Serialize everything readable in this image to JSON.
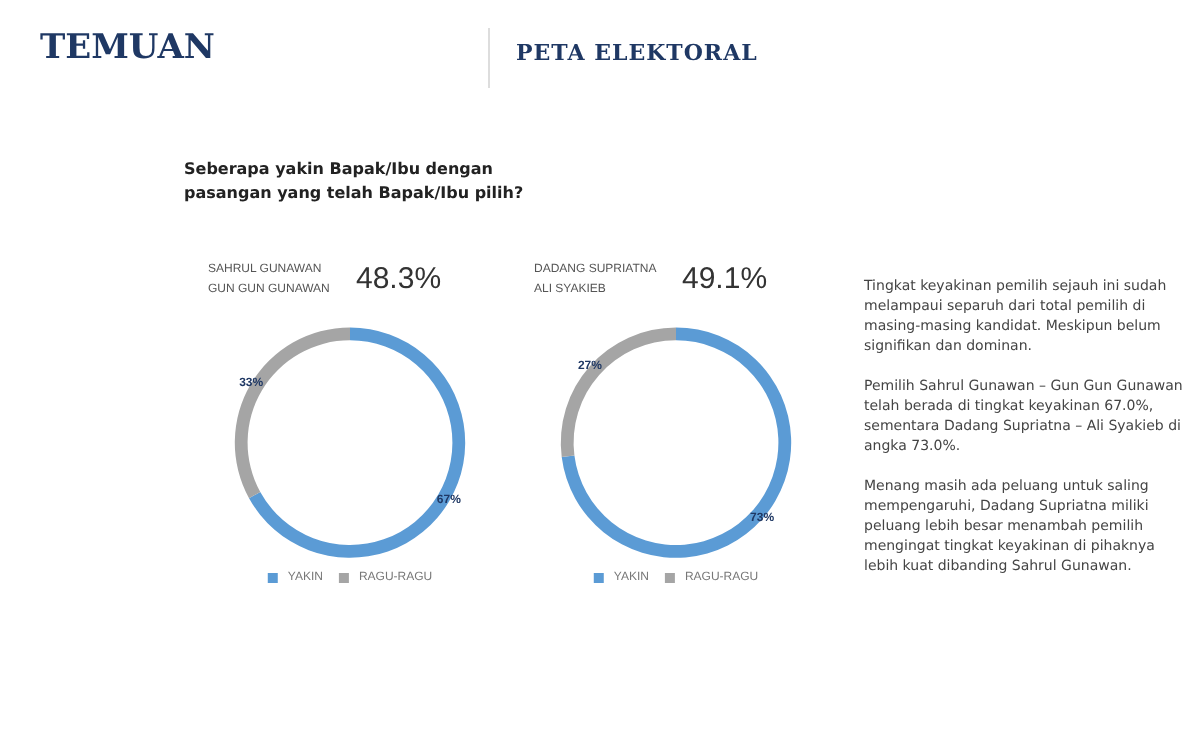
{
  "chart_data": [
    {
      "type": "donut",
      "title": "SAHRUL GUNAWAN\nGUN GUN GUNAWAN",
      "subtitle": "48.3%",
      "annotations": [
        "TEMUAN",
        "PETA ELEKTORAL",
        "Seberapa yakin Bapak/Ibu dengan\npasangan yang telah Bapak/Ibu pilih?"
      ],
      "categories": [
        "YAKIN",
        "RAGU-RAGU"
      ],
      "values": [
        67,
        33
      ],
      "colors": [
        "#5b9bd5",
        "#a5a5a5"
      ],
      "value_labels": [
        "67%",
        "33%"
      ],
      "legend": "bottom"
    },
    {
      "type": "donut",
      "title": "DADANG SUPRIATNA\nALI SYAKIEB",
      "subtitle": "49.1%",
      "categories": [
        "YAKIN",
        "RAGU-RAGU"
      ],
      "values": [
        73,
        27
      ],
      "colors": [
        "#5b9bd5",
        "#a5a5a5"
      ],
      "value_labels": [
        "73%",
        "27%"
      ],
      "legend": "bottom"
    },
    {
      "type": "other",
      "annotations": [
        "Tingkat keyakinan pemilih sejauh ini sudah melampaui separuh dari total pemilih di masing-masing kandidat. Meskipun belum signifikan dan dominan.",
        "Pemilih Sahrul Gunawan – Gun Gun Gunawan telah berada di tingkat keyakinan 67.0%, sementara Dadang Supriatna – Ali Syakieb di angka 73.0%.",
        "Menang masih ada peluang untuk saling mempengaruhi, Dadang Supriatna miliki peluang lebih besar menambah pemilih mengingat tingkat keyakinan di pihaknya lebih kuat dibanding Sahrul Gunawan."
      ]
    }
  ]
}
